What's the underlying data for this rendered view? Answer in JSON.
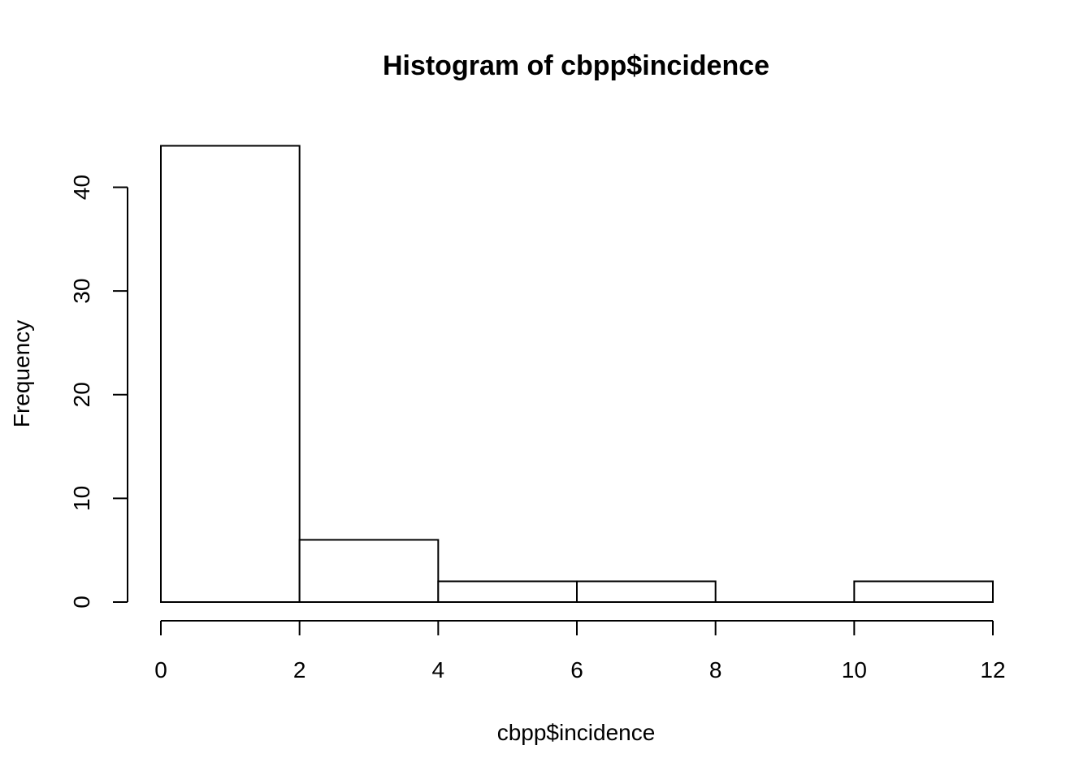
{
  "chart_data": {
    "type": "bar",
    "title": "Histogram of cbpp$incidence",
    "xlabel": "cbpp$incidence",
    "ylabel": "Frequency",
    "bins": [
      {
        "start": 0,
        "end": 2,
        "count": 44
      },
      {
        "start": 2,
        "end": 4,
        "count": 6
      },
      {
        "start": 4,
        "end": 6,
        "count": 2
      },
      {
        "start": 6,
        "end": 8,
        "count": 2
      },
      {
        "start": 8,
        "end": 10,
        "count": 0
      },
      {
        "start": 10,
        "end": 12,
        "count": 2
      }
    ],
    "xlim": [
      0,
      12
    ],
    "ylim": [
      0,
      44
    ],
    "x_ticks": [
      0,
      2,
      4,
      6,
      8,
      10,
      12
    ],
    "y_ticks": [
      0,
      10,
      20,
      30,
      40
    ],
    "x_tick_labels": [
      "0",
      "2",
      "4",
      "6",
      "8",
      "10",
      "12"
    ],
    "y_tick_labels": [
      "0",
      "10",
      "20",
      "30",
      "40"
    ],
    "grid": false,
    "bar_fill_color": "#ffffff",
    "bar_stroke_color": "#000000"
  }
}
